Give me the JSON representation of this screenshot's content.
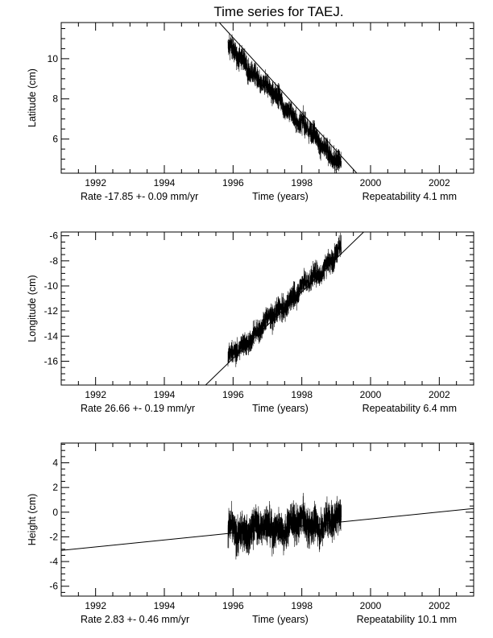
{
  "title": "Time series for TAEJ.",
  "chart_data": [
    {
      "type": "line",
      "ylabel": "Latitude (cm)",
      "xlabel": "Time (years)",
      "xlim": [
        1991.0,
        2003.0
      ],
      "ylim": [
        4.3,
        11.8
      ],
      "x_ticks": [
        1992,
        1994,
        1996,
        1998,
        2000,
        2002
      ],
      "y_ticks": [
        6,
        8,
        10
      ],
      "rate_text": "Rate -17.85 +- 0.09 mm/yr",
      "repeatability_text": "Repeatability 4.1 mm",
      "data_range": [
        1995.85,
        1999.15
      ],
      "data_start": 10.6,
      "rate_cm_per_yr": -1.785,
      "noise_cm": 0.4,
      "trend": [
        [
          1995.6,
          11.8
        ],
        [
          1999.6,
          4.3
        ]
      ],
      "series": [
        {
          "x": [
            1995.9,
            1996.5,
            1997.0,
            1997.5,
            1998.0,
            1998.5,
            1999.0,
            1999.15
          ],
          "y": [
            10.6,
            9.5,
            8.9,
            8.3,
            7.2,
            6.1,
            5.6,
            5.1
          ]
        }
      ]
    },
    {
      "type": "line",
      "ylabel": "Longitude (cm)",
      "xlabel": "Time (years)",
      "xlim": [
        1991.0,
        2003.0
      ],
      "ylim": [
        -17.9,
        -5.7
      ],
      "x_ticks": [
        1992,
        1994,
        1996,
        1998,
        2000,
        2002
      ],
      "y_ticks": [
        -16,
        -14,
        -12,
        -10,
        -8,
        -6
      ],
      "rate_text": "Rate  26.66 +- 0.19 mm/yr",
      "repeatability_text": "Repeatability 6.4 mm",
      "data_range": [
        1995.85,
        1999.15
      ],
      "data_start": -15.9,
      "rate_cm_per_yr": 2.666,
      "noise_cm": 0.65,
      "trend": [
        [
          1995.2,
          -17.9
        ],
        [
          1999.8,
          -5.7
        ]
      ],
      "series": [
        {
          "x": [
            1995.9,
            1996.5,
            1997.0,
            1997.5,
            1998.0,
            1998.5,
            1999.0,
            1999.15
          ],
          "y": [
            -15.9,
            -14.6,
            -13.2,
            -12.3,
            -10.8,
            -9.4,
            -8.2,
            -7.8
          ]
        }
      ]
    },
    {
      "type": "line",
      "ylabel": "Height (cm)",
      "xlabel": "Time (years)",
      "xlim": [
        1991.0,
        2003.0
      ],
      "ylim": [
        -6.8,
        5.6
      ],
      "x_ticks": [
        1992,
        1994,
        1996,
        1998,
        2000,
        2002
      ],
      "y_ticks": [
        -6,
        -4,
        -2,
        0,
        2,
        4
      ],
      "rate_text": "Rate   2.83 +- 0.46 mm/yr",
      "repeatability_text": "Repeatability 10.1 mm",
      "data_range": [
        1995.85,
        1999.15
      ],
      "data_start": -1.6,
      "rate_cm_per_yr": 0.283,
      "noise_cm": 1.05,
      "trend": [
        [
          1991.0,
          -3.1
        ],
        [
          2003.0,
          0.3
        ]
      ],
      "series": [
        {
          "x": [
            1995.9,
            1996.5,
            1997.0,
            1997.5,
            1998.0,
            1998.5,
            1999.0,
            1999.15
          ],
          "y": [
            -1.6,
            -1.4,
            -1.3,
            -1.2,
            -1.0,
            -0.9,
            -0.7,
            -0.7
          ]
        }
      ]
    }
  ]
}
